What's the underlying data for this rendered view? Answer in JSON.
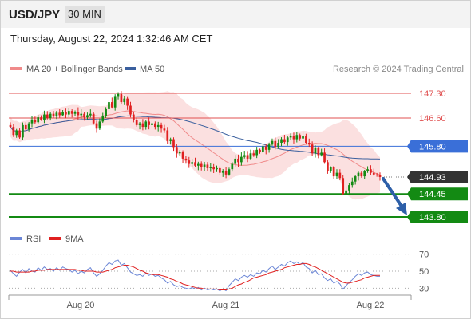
{
  "header": {
    "symbol": "USD/JPY",
    "interval": "30 MIN",
    "timestamp": "Thursday, August 22, 2024 1:32:46 AM CET"
  },
  "legend": {
    "items": [
      {
        "label": "MA 20 + Bollinger Bands",
        "color": "#f08a8a"
      },
      {
        "label": "MA 50",
        "color": "#3a5f9e"
      }
    ],
    "copyright": "Research © 2024 Trading Central"
  },
  "rsi_legend": {
    "items": [
      {
        "label": "RSI",
        "color": "#6b86d6"
      },
      {
        "label": "9MA",
        "color": "#e02020"
      }
    ]
  },
  "x_axis": {
    "labels": [
      "Aug 20",
      "Aug 21",
      "Aug 22"
    ]
  },
  "chart_data": {
    "type": "candlestick",
    "price_range": [
      143.8,
      147.3
    ],
    "levels": [
      {
        "label": "147.30",
        "value": 147.3,
        "kind": "resistance"
      },
      {
        "label": "146.60",
        "value": 146.6,
        "kind": "resistance"
      },
      {
        "label": "145.80",
        "value": 145.8,
        "kind": "pivot"
      },
      {
        "label": "144.93",
        "value": 144.93,
        "kind": "last"
      },
      {
        "label": "144.45",
        "value": 144.45,
        "kind": "support"
      },
      {
        "label": "143.80",
        "value": 143.8,
        "kind": "support"
      }
    ],
    "colors": {
      "resistance": "#e05050",
      "pivot": "#3a6fd8",
      "support": "#138a13",
      "last": "#333333",
      "candle_up": "#138a13",
      "candle_down": "#e02020",
      "bands": "#f7c6c6",
      "ma20": "#f08a8a",
      "ma50": "#3a5f9e",
      "arrow": "#2d5fa8"
    },
    "closes": [
      146.35,
      146.12,
      146.25,
      146.05,
      146.4,
      146.28,
      146.45,
      146.55,
      146.48,
      146.62,
      146.55,
      146.7,
      146.6,
      146.72,
      146.65,
      146.75,
      146.68,
      146.78,
      146.7,
      146.8,
      146.72,
      146.78,
      146.68,
      146.72,
      146.62,
      146.68,
      146.72,
      146.45,
      146.3,
      146.5,
      146.65,
      146.85,
      147.05,
      146.9,
      147.2,
      147.28,
      147.05,
      147.15,
      146.95,
      146.7,
      146.55,
      146.4,
      146.45,
      146.35,
      146.5,
      146.4,
      146.45,
      146.35,
      146.4,
      146.3,
      146.25,
      145.95,
      146.0,
      145.78,
      145.6,
      145.65,
      145.45,
      145.4,
      145.3,
      145.35,
      145.25,
      145.3,
      145.2,
      145.28,
      145.18,
      145.22,
      145.15,
      145.18,
      145.05,
      145.1,
      145.0,
      145.15,
      145.3,
      145.45,
      145.35,
      145.5,
      145.55,
      145.45,
      145.6,
      145.55,
      145.7,
      145.65,
      145.8,
      145.7,
      145.85,
      145.95,
      145.78,
      145.9,
      146.0,
      145.92,
      146.05,
      146.1,
      146.0,
      146.12,
      146.02,
      146.08,
      145.9,
      145.85,
      145.6,
      145.75,
      145.55,
      145.62,
      145.35,
      145.1,
      145.2,
      144.95,
      145.05,
      144.9,
      144.45,
      144.55,
      144.7,
      144.8,
      144.95,
      145.05,
      144.95,
      145.1,
      145.15,
      145.05,
      145.0,
      144.98,
      144.93
    ],
    "rsi": {
      "range": [
        20,
        80
      ],
      "ticks": [
        70,
        50,
        30
      ],
      "values": [
        51,
        47,
        44,
        49,
        52,
        48,
        53,
        50,
        49,
        54,
        51,
        55,
        52,
        53,
        50,
        54,
        51,
        55,
        53,
        52,
        49,
        51,
        47,
        50,
        48,
        52,
        54,
        48,
        44,
        47,
        51,
        56,
        60,
        58,
        62,
        63,
        57,
        59,
        54,
        49,
        47,
        45,
        46,
        44,
        48,
        45,
        47,
        44,
        45,
        42,
        40,
        36,
        38,
        34,
        32,
        33,
        31,
        30,
        29,
        31,
        29,
        31,
        28,
        30,
        28,
        29,
        28,
        29,
        27,
        29,
        27,
        33,
        37,
        41,
        39,
        43,
        45,
        43,
        46,
        44,
        48,
        47,
        51,
        49,
        53,
        56,
        52,
        55,
        58,
        56,
        60,
        62,
        59,
        61,
        58,
        60,
        55,
        53,
        48,
        51,
        46,
        47,
        42,
        39,
        41,
        36,
        38,
        35,
        29,
        33,
        37,
        40,
        44,
        47,
        45,
        48,
        49,
        46,
        45,
        44,
        44
      ],
      "ma9": [
        50,
        50,
        49,
        49,
        49,
        49,
        49,
        50,
        50,
        51,
        51,
        51,
        52,
        52,
        52,
        52,
        52,
        52,
        52,
        52,
        52,
        52,
        51,
        51,
        50,
        50,
        50,
        50,
        49,
        49,
        49,
        50,
        51,
        52,
        54,
        55,
        56,
        57,
        57,
        56,
        55,
        53,
        51,
        50,
        48,
        47,
        46,
        46,
        46,
        45,
        44,
        43,
        41,
        40,
        38,
        37,
        35,
        34,
        33,
        32,
        31,
        30,
        30,
        29,
        29,
        29,
        29,
        29,
        28,
        28,
        28,
        29,
        30,
        32,
        34,
        35,
        37,
        38,
        40,
        42,
        43,
        44,
        45,
        46,
        48,
        49,
        50,
        51,
        52,
        54,
        55,
        56,
        57,
        58,
        58,
        59,
        59,
        58,
        56,
        55,
        53,
        51,
        49,
        47,
        45,
        43,
        41,
        39,
        37,
        36,
        36,
        37,
        38,
        39,
        40,
        42,
        43,
        44,
        45,
        45,
        45
      ]
    }
  }
}
